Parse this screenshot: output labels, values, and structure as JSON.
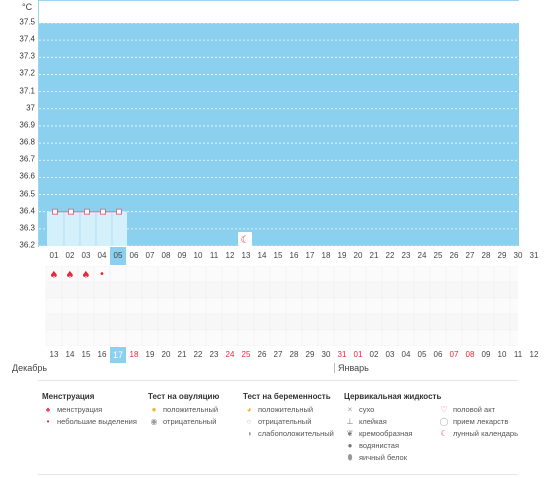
{
  "chart_data": {
    "type": "line",
    "ylabel": "°C",
    "ylim": [
      36.2,
      37.5
    ],
    "yticks": [
      "37.5",
      "37.4",
      "37.3",
      "37.2",
      "37.1",
      "37",
      "36.9",
      "36.8",
      "36.7",
      "36.6",
      "36.5",
      "36.4",
      "36.3",
      "36.2"
    ],
    "cycle_days": [
      "01",
      "02",
      "03",
      "04",
      "05",
      "06",
      "07",
      "08",
      "09",
      "10",
      "11",
      "12",
      "13",
      "14",
      "15",
      "16",
      "17",
      "18",
      "19",
      "20",
      "21",
      "22",
      "23",
      "24",
      "25",
      "26",
      "27",
      "28",
      "29",
      "30",
      "31"
    ],
    "highlight_cycle_day": "05",
    "series": [
      {
        "x": [
          "01",
          "02",
          "03",
          "04",
          "05"
        ],
        "y": [
          36.4,
          36.4,
          36.4,
          36.4,
          36.4
        ]
      }
    ],
    "grid": "horizontal-dashed",
    "lunar_marker_day": "13",
    "menstruation_days": [
      "01",
      "02",
      "03"
    ],
    "light_discharge_days": [
      "04"
    ]
  },
  "dates": [
    {
      "d": "13",
      "red": false
    },
    {
      "d": "14",
      "red": false
    },
    {
      "d": "15",
      "red": false
    },
    {
      "d": "16",
      "red": false
    },
    {
      "d": "17",
      "red": false,
      "today": true
    },
    {
      "d": "18",
      "red": true
    },
    {
      "d": "19",
      "red": false
    },
    {
      "d": "20",
      "red": false
    },
    {
      "d": "21",
      "red": false
    },
    {
      "d": "22",
      "red": false
    },
    {
      "d": "23",
      "red": false
    },
    {
      "d": "24",
      "red": true
    },
    {
      "d": "25",
      "red": true
    },
    {
      "d": "26",
      "red": false
    },
    {
      "d": "27",
      "red": false
    },
    {
      "d": "28",
      "red": false
    },
    {
      "d": "29",
      "red": false
    },
    {
      "d": "30",
      "red": false
    },
    {
      "d": "31",
      "red": true
    },
    {
      "d": "01",
      "red": true
    },
    {
      "d": "02",
      "red": false
    },
    {
      "d": "03",
      "red": false
    },
    {
      "d": "04",
      "red": false
    },
    {
      "d": "05",
      "red": false
    },
    {
      "d": "06",
      "red": false
    },
    {
      "d": "07",
      "red": true
    },
    {
      "d": "08",
      "red": true
    },
    {
      "d": "09",
      "red": false
    },
    {
      "d": "10",
      "red": false
    },
    {
      "d": "11",
      "red": false
    },
    {
      "d": "12",
      "red": false
    }
  ],
  "months": {
    "december": "Декабрь",
    "january": "Январь"
  },
  "legend": {
    "menstruation": {
      "title": "Менструация",
      "items": [
        "менструация",
        "небольшие выделения"
      ]
    },
    "ovulation_test": {
      "title": "Тест на овуляцию",
      "items": [
        "положительный",
        "отрицательный"
      ]
    },
    "pregnancy_test": {
      "title": "Тест на беременность",
      "items": [
        "положительный",
        "отрицательный",
        "слабоположительный"
      ]
    },
    "cervical_fluid": {
      "title": "Цервикальная жидкость",
      "items": [
        "сухо",
        "клейкая",
        "кремообразная",
        "водянистая",
        "яичный белок"
      ]
    },
    "other": {
      "items": [
        "половой акт",
        "прием лекарств",
        "лунный календарь"
      ]
    }
  },
  "colors": {
    "plot_bg": "#8bd0ee",
    "band": "#d4f0fb",
    "accent_red": "#e5293e",
    "marker": "#e36a8f"
  }
}
